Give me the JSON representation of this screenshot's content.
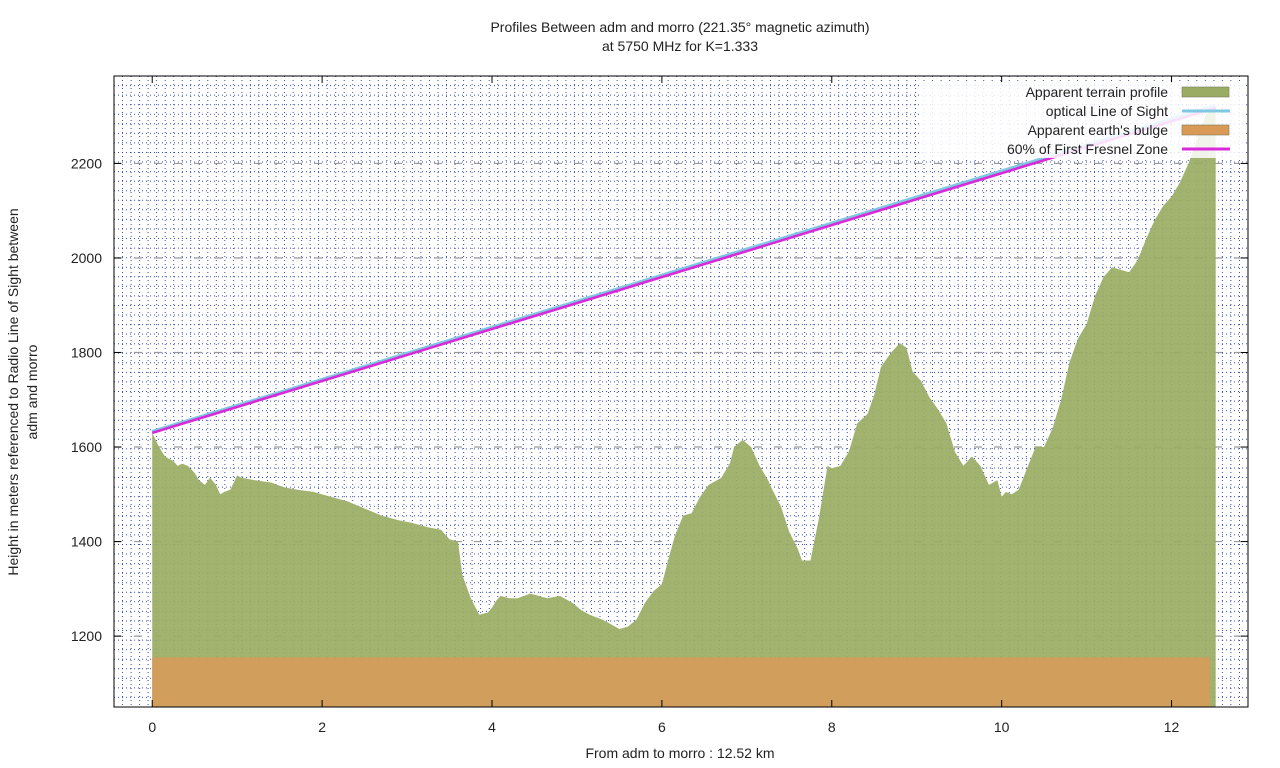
{
  "chart_data": {
    "type": "area",
    "title": "Profiles Between adm and morro (221.35° magnetic azimuth)",
    "subtitle": "at 5750 MHz for K=1.333",
    "xlabel": "From adm to morro : 12.52 km",
    "ylabel_line1": "Height in meters referenced to Radio Line of Sight between",
    "ylabel_line2": "adm and morro",
    "xlim": [
      -0.45,
      12.9
    ],
    "ylim": [
      1050,
      2385
    ],
    "x_ticks": [
      0,
      2,
      4,
      6,
      8,
      10,
      12
    ],
    "y_ticks": [
      1200,
      1400,
      1600,
      1800,
      2000,
      2200
    ],
    "grid": true,
    "legend_position": "top-right",
    "legend": [
      {
        "label": "Apparent terrain profile",
        "color": "#9aac64",
        "kind": "box"
      },
      {
        "label": "optical Line of Sight",
        "color": "#7ec8e3",
        "kind": "line"
      },
      {
        "label": "Apparent earth's bulge",
        "color": "#d99a58",
        "kind": "box"
      },
      {
        "label": "60% of First Fresnel Zone",
        "color": "#d92ad9",
        "kind": "line"
      }
    ],
    "series": [
      {
        "name": "Apparent terrain profile",
        "x": [
          0,
          0.08,
          0.15,
          0.25,
          0.3,
          0.35,
          0.42,
          0.5,
          0.55,
          0.62,
          0.68,
          0.75,
          0.8,
          0.85,
          0.92,
          1.0,
          1.05,
          1.2,
          1.4,
          1.55,
          1.7,
          1.9,
          2.1,
          2.3,
          2.5,
          2.7,
          2.9,
          3.05,
          3.25,
          3.4,
          3.5,
          3.6,
          3.65,
          3.75,
          3.85,
          3.95,
          4.0,
          4.05,
          4.1,
          4.2,
          4.3,
          4.38,
          4.45,
          4.55,
          4.65,
          4.8,
          4.95,
          5.05,
          5.15,
          5.3,
          5.4,
          5.5,
          5.6,
          5.7,
          5.8,
          5.9,
          6.0,
          6.08,
          6.15,
          6.25,
          6.35,
          6.45,
          6.55,
          6.7,
          6.8,
          6.85,
          6.95,
          7.05,
          7.15,
          7.25,
          7.3,
          7.4,
          7.5,
          7.6,
          7.65,
          7.75,
          7.85,
          7.95,
          8.0,
          8.1,
          8.2,
          8.3,
          8.42,
          8.5,
          8.58,
          8.7,
          8.8,
          8.88,
          8.95,
          9.05,
          9.15,
          9.25,
          9.35,
          9.45,
          9.55,
          9.65,
          9.75,
          9.85,
          9.95,
          10.0,
          10.05,
          10.12,
          10.2,
          10.3,
          10.4,
          10.5,
          10.6,
          10.7,
          10.8,
          10.9,
          11.0,
          11.1,
          11.2,
          11.3,
          11.4,
          11.5,
          11.6,
          11.7,
          11.8,
          11.9,
          12.0,
          12.1,
          12.2,
          12.3,
          12.4,
          12.45,
          12.52
        ],
        "values": [
          1630,
          1600,
          1580,
          1570,
          1560,
          1565,
          1560,
          1545,
          1530,
          1520,
          1535,
          1520,
          1500,
          1505,
          1510,
          1540,
          1535,
          1530,
          1525,
          1515,
          1510,
          1505,
          1495,
          1485,
          1470,
          1455,
          1445,
          1440,
          1430,
          1425,
          1405,
          1400,
          1330,
          1280,
          1245,
          1250,
          1260,
          1275,
          1285,
          1280,
          1280,
          1285,
          1290,
          1285,
          1280,
          1285,
          1270,
          1255,
          1245,
          1235,
          1225,
          1215,
          1220,
          1235,
          1270,
          1295,
          1310,
          1365,
          1410,
          1455,
          1460,
          1495,
          1520,
          1535,
          1565,
          1600,
          1615,
          1600,
          1560,
          1530,
          1510,
          1475,
          1420,
          1385,
          1360,
          1360,
          1450,
          1560,
          1555,
          1560,
          1590,
          1650,
          1670,
          1710,
          1770,
          1800,
          1820,
          1810,
          1760,
          1740,
          1705,
          1680,
          1650,
          1590,
          1560,
          1580,
          1560,
          1520,
          1530,
          1495,
          1505,
          1500,
          1510,
          1555,
          1600,
          1600,
          1640,
          1700,
          1780,
          1830,
          1860,
          1920,
          1960,
          1980,
          1975,
          1970,
          1995,
          2040,
          2080,
          2110,
          2130,
          2160,
          2200,
          2250,
          2300,
          2310,
          2320
        ]
      },
      {
        "name": "Apparent earth's bulge",
        "x": [
          0,
          12.45
        ],
        "values": [
          1155,
          1155
        ]
      },
      {
        "name": "optical Line of Sight",
        "x": [
          0,
          12.52
        ],
        "values": [
          1632,
          2322
        ]
      },
      {
        "name": "60% of First Fresnel Zone",
        "x": [
          0,
          12.52
        ],
        "values": [
          1630,
          2318
        ]
      }
    ]
  }
}
